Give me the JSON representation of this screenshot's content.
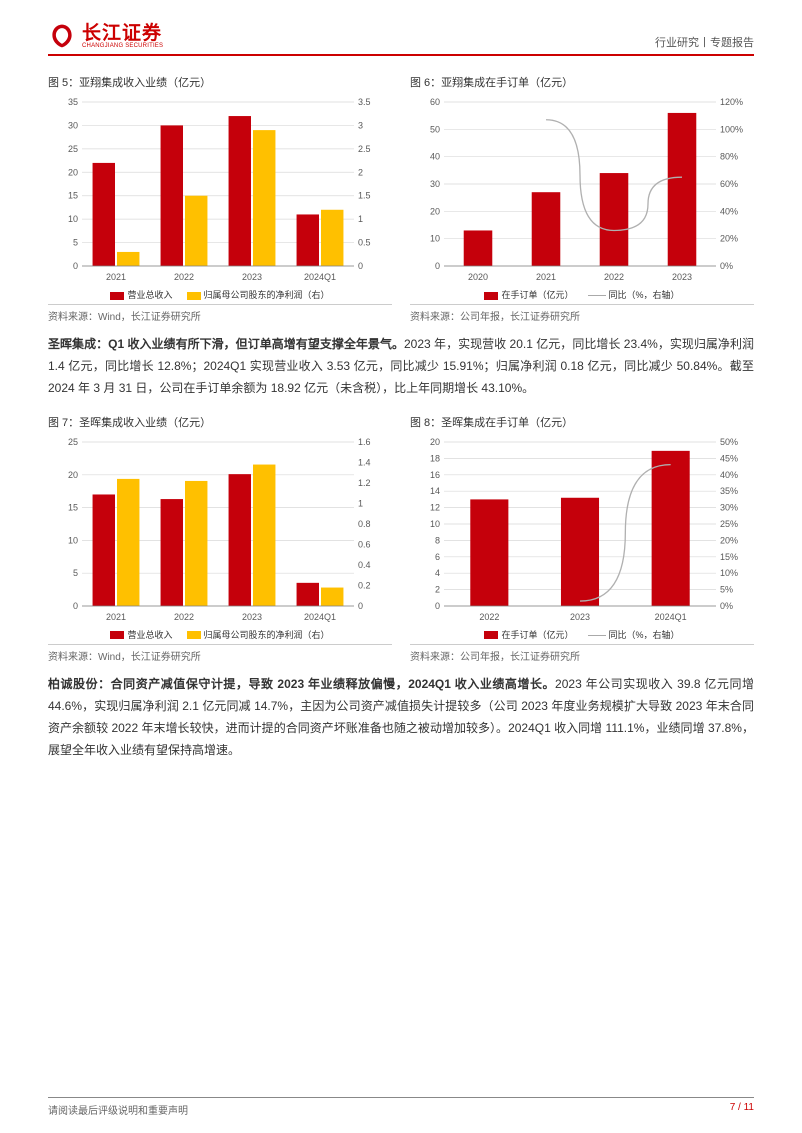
{
  "header": {
    "logo_cn": "长江证券",
    "logo_en": "CHANGJIANG SECURITIES",
    "doc_type": "行业研究丨专题报告"
  },
  "colors": {
    "brand_red": "#c5000b",
    "brand_orange": "#ffc000",
    "grid": "#d9d9d9",
    "axis": "#808080",
    "axis_text": "#595959",
    "line_gray": "#b0b0b0"
  },
  "chart5": {
    "title": "图 5：亚翔集成收入业绩（亿元）",
    "type": "bar_dual",
    "categories": [
      "2021",
      "2022",
      "2023",
      "2024Q1"
    ],
    "left_label": "营业总收入",
    "right_label": "归属母公司股东的净利润（右）",
    "left_values": [
      22,
      30,
      32,
      11
    ],
    "right_values": [
      0.3,
      1.5,
      2.9,
      1.2
    ],
    "ylim_left": [
      0,
      35
    ],
    "ytick_left": [
      0,
      5,
      10,
      15,
      20,
      25,
      30,
      35
    ],
    "ylim_right": [
      0,
      3.5
    ],
    "ytick_right": [
      0.0,
      0.5,
      1.0,
      1.5,
      2.0,
      2.5,
      3.0,
      3.5
    ],
    "left_color": "#c5000b",
    "right_color": "#ffc000",
    "bar_width": 0.33,
    "source": "资料来源：Wind，长江证券研究所"
  },
  "chart6": {
    "title": "图 6：亚翔集成在手订单（亿元）",
    "type": "bar_line",
    "categories": [
      "2020",
      "2021",
      "2022",
      "2023"
    ],
    "bar_label": "在手订单（亿元）",
    "line_label": "同比（%，右轴）",
    "bar_values": [
      13,
      27,
      34,
      56
    ],
    "line_values": [
      null,
      107,
      26,
      65
    ],
    "ylim_left": [
      0,
      60
    ],
    "ytick_left": [
      0,
      10,
      20,
      30,
      40,
      50,
      60
    ],
    "ylim_right": [
      0,
      120
    ],
    "ytick_right": [
      "0%",
      "20%",
      "40%",
      "60%",
      "80%",
      "100%",
      "120%"
    ],
    "bar_color": "#c5000b",
    "line_color": "#b0b0b0",
    "bar_width": 0.42,
    "source": "资料来源：公司年报，长江证券研究所"
  },
  "para1": {
    "bold": "圣晖集成：Q1 收入业绩有所下滑，但订单高增有望支撑全年景气。",
    "rest": "2023 年，实现营收 20.1 亿元，同比增长 23.4%，实现归属净利润 1.4 亿元，同比增长 12.8%；2024Q1 实现营业收入 3.53 亿元，同比减少 15.91%；归属净利润 0.18 亿元，同比减少 50.84%。截至 2024 年 3 月 31 日，公司在手订单余额为 18.92 亿元（未含税），比上年同期增长 43.10%。"
  },
  "chart7": {
    "title": "图 7：圣晖集成收入业绩（亿元）",
    "type": "bar_dual",
    "categories": [
      "2021",
      "2022",
      "2023",
      "2024Q1"
    ],
    "left_label": "营业总收入",
    "right_label": "归属母公司股东的净利润（右）",
    "left_values": [
      17,
      16.3,
      20.1,
      3.53
    ],
    "right_values": [
      1.24,
      1.22,
      1.38,
      0.18
    ],
    "ylim_left": [
      0,
      25
    ],
    "ytick_left": [
      0,
      5,
      10,
      15,
      20,
      25
    ],
    "ylim_right": [
      0,
      1.6
    ],
    "ytick_right": [
      0.0,
      0.2,
      0.4,
      0.6,
      0.8,
      1.0,
      1.2,
      1.4,
      1.6
    ],
    "left_color": "#c5000b",
    "right_color": "#ffc000",
    "bar_width": 0.33,
    "source": "资料来源：Wind，长江证券研究所"
  },
  "chart8": {
    "title": "图 8：圣晖集成在手订单（亿元）",
    "type": "bar_line",
    "categories": [
      "2022",
      "2023",
      "2024Q1"
    ],
    "bar_label": "在手订单（亿元）",
    "line_label": "同比（%，右轴）",
    "bar_values": [
      13,
      13.2,
      18.92
    ],
    "line_values": [
      null,
      1.5,
      43.1
    ],
    "ylim_left": [
      0,
      20
    ],
    "ytick_left": [
      0,
      2,
      4,
      6,
      8,
      10,
      12,
      14,
      16,
      18,
      20
    ],
    "ylim_right": [
      0,
      50
    ],
    "ytick_right": [
      "0%",
      "5%",
      "10%",
      "15%",
      "20%",
      "25%",
      "30%",
      "35%",
      "40%",
      "45%",
      "50%"
    ],
    "bar_color": "#c5000b",
    "line_color": "#b0b0b0",
    "bar_width": 0.42,
    "source": "资料来源：公司年报，长江证券研究所"
  },
  "para2": {
    "bold": "柏诚股份：合同资产减值保守计提，导致 2023 年业绩释放偏慢，2024Q1 收入业绩高增长。",
    "rest": "2023 年公司实现收入 39.8 亿元同增 44.6%，实现归属净利润 2.1 亿元同减 14.7%，主因为公司资产减值损失计提较多（公司 2023 年度业务规模扩大导致 2023 年末合同资产余额较 2022 年末增长较快，进而计提的合同资产坏账准备也随之被动增加较多）。2024Q1 收入同增 111.1%，业绩同增 37.8%，展望全年收入业绩有望保持高增速。"
  },
  "footer": {
    "note": "请阅读最后评级说明和重要声明",
    "page": "7 / 11"
  }
}
